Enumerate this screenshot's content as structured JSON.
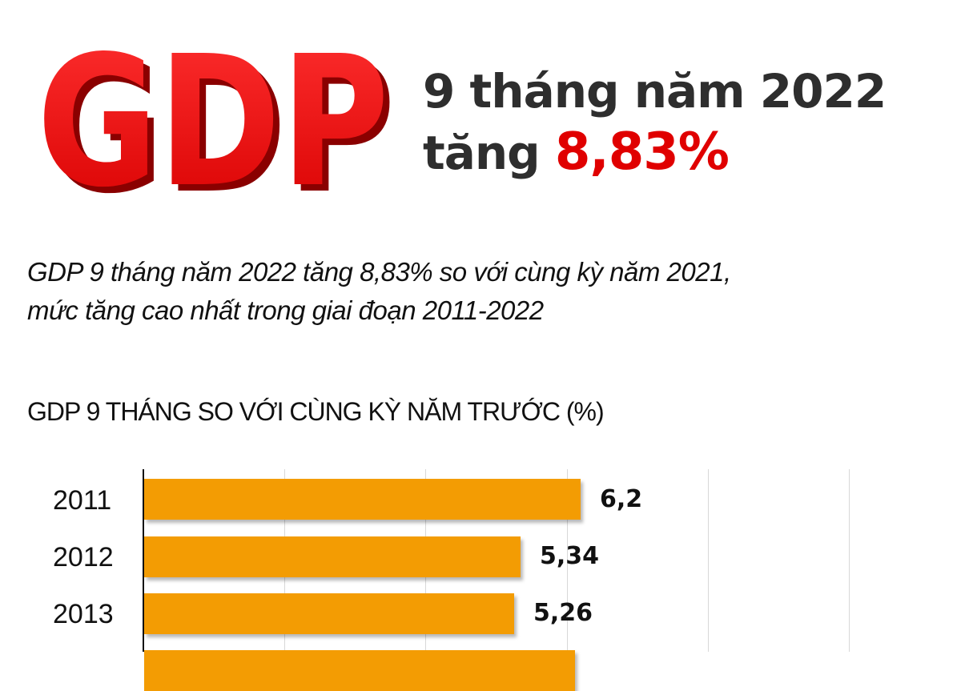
{
  "header": {
    "logo_text": "GDP",
    "headline_line1": "9 tháng năm 2022",
    "headline_line2_prefix": "tăng",
    "headline_highlight": "8,83%",
    "colors": {
      "logo_red": "#e41a1a",
      "headline_dark": "#2e2e2e",
      "highlight_red": "#e00000"
    }
  },
  "subtitle": {
    "line1": "GDP 9 tháng năm 2022 tăng 8,83% so với cùng kỳ năm 2021,",
    "line2": "mức tăng cao nhất trong giai đoạn 2011-2022"
  },
  "chart_data": {
    "type": "bar",
    "orientation": "horizontal",
    "title": "GDP 9 THÁNG SO VỚI CÙNG KỲ NĂM TRƯỚC (%)",
    "xlabel": "",
    "ylabel": "",
    "categories": [
      "2011",
      "2012",
      "2013"
    ],
    "values": [
      6.2,
      5.34,
      5.26
    ],
    "value_labels": [
      "6,2",
      "5,34",
      "5,26"
    ],
    "partial_next_bar_visible": true,
    "xlim": [
      0,
      10
    ],
    "grid": true,
    "gridline_values": [
      0,
      2,
      4,
      6,
      8,
      10
    ],
    "tick_labels_visible": false,
    "legend": null,
    "bar_color": "#f39c03"
  }
}
